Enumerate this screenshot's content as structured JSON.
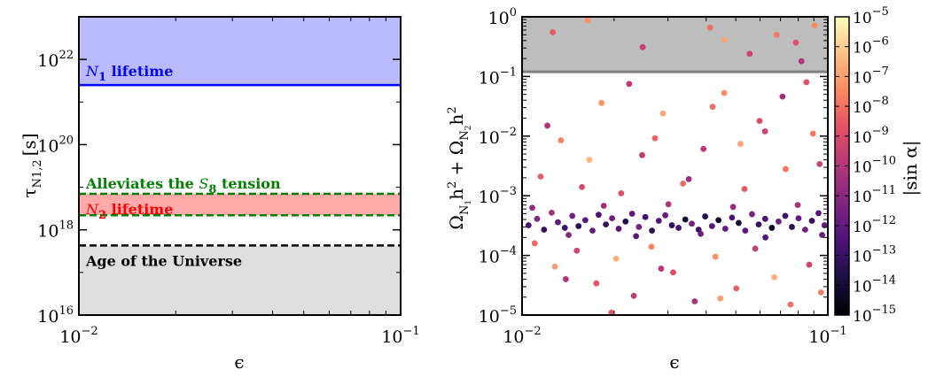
{
  "chart_data": [
    {
      "type": "area",
      "xlabel": "ϵ",
      "ylabel": "τN1,2 [s]",
      "ylabel_main": "τ",
      "ylabel_sub": "N1,2",
      "ylabel_unit": "[s]",
      "xscale": "log",
      "yscale": "log",
      "xlim": [
        0.01,
        0.1
      ],
      "ylim": [
        1e+16,
        1e+23
      ],
      "x_ticks": [
        {
          "base": "10",
          "exp": "−2"
        },
        {
          "base": "10",
          "exp": "−1"
        }
      ],
      "y_ticks": [
        {
          "value": 1e+16,
          "base": "10",
          "exp": "16"
        },
        {
          "value": 1e+18,
          "base": "10",
          "exp": "18"
        },
        {
          "value": 1e+20,
          "base": "10",
          "exp": "20"
        },
        {
          "value": 1e+22,
          "base": "10",
          "exp": "22"
        }
      ],
      "bands": [
        {
          "name": "N1 lifetime",
          "label_main": "N",
          "label_sub": "1",
          "label_rest": " lifetime",
          "y_low": 2.5e+21,
          "y_high": 1e+23,
          "fill": "#babaff",
          "edge": "#0000ff",
          "text_color": "#0000ff",
          "edge_style": "solid"
        },
        {
          "name": "N2 lifetime",
          "label_main": "N",
          "label_sub": "2",
          "label_rest": " lifetime",
          "y_low": 2.2e+18,
          "y_high": 7e+18,
          "fill": "#ffaaaa",
          "edge": "#ffaaaa",
          "text_color": "#ff0000",
          "edge_style": "none"
        },
        {
          "name": "Alleviates the S8 tension",
          "label_pre": "Alleviates the ",
          "label_main": "S",
          "label_sub": "8",
          "label_rest": " tension",
          "y_low": 2.2e+18,
          "y_high": 7e+18,
          "fill": "none",
          "edge": "#008000",
          "text_color": "#008000",
          "edge_style": "dashed"
        },
        {
          "name": "Age of the Universe",
          "label_text": "Age of the Universe",
          "y_low": 1e+16,
          "y_high": 4.3e+17,
          "fill": "#dfdfdf",
          "edge": "#000000",
          "text_color": "#000000",
          "edge_style": "dashed"
        }
      ]
    },
    {
      "type": "scatter",
      "xlabel": "ϵ",
      "ylabel": "ΩN1h2 + ΩN2h2",
      "xscale": "log",
      "yscale": "log",
      "xlim": [
        0.01,
        0.1
      ],
      "ylim": [
        1e-05,
        1
      ],
      "x_ticks": [
        {
          "base": "10",
          "exp": "−2"
        },
        {
          "base": "10",
          "exp": "−1"
        }
      ],
      "y_ticks": [
        {
          "value": 1e-05,
          "base": "10",
          "exp": "−5"
        },
        {
          "value": 0.0001,
          "base": "10",
          "exp": "−4"
        },
        {
          "value": 0.001,
          "base": "10",
          "exp": "−3"
        },
        {
          "value": 0.01,
          "base": "10",
          "exp": "−2"
        },
        {
          "value": 0.1,
          "base": "10",
          "exp": "−1"
        },
        {
          "value": 1,
          "base": "10",
          "exp": "0"
        }
      ],
      "excluded_region": {
        "y_low": 0.12,
        "y_high": 1,
        "fill": "#bdbdbd",
        "edge": "#808080"
      },
      "colorbar": {
        "label": "|sin α|",
        "scale": "log",
        "range": [
          1e-15,
          1e-05
        ],
        "colormap": "magma",
        "ticks": [
          {
            "value": 1e-05,
            "base": "10",
            "exp": "−5"
          },
          {
            "value": 1e-06,
            "base": "10",
            "exp": "−6"
          },
          {
            "value": 1e-07,
            "base": "10",
            "exp": "−7"
          },
          {
            "value": 1e-08,
            "base": "10",
            "exp": "−8"
          },
          {
            "value": 1e-09,
            "base": "10",
            "exp": "−9"
          },
          {
            "value": 1e-10,
            "base": "10",
            "exp": "−10"
          },
          {
            "value": 1e-11,
            "base": "10",
            "exp": "−11"
          },
          {
            "value": 1e-12,
            "base": "10",
            "exp": "−12"
          },
          {
            "value": 1e-13,
            "base": "10",
            "exp": "−13"
          },
          {
            "value": 1e-14,
            "base": "10",
            "exp": "−14"
          },
          {
            "value": 1e-15,
            "base": "10",
            "exp": "−15"
          }
        ]
      },
      "points": [
        [
          0.0105,
          0.00032,
          -12.5
        ],
        [
          0.0112,
          0.00041,
          -11.2
        ],
        [
          0.0118,
          0.00027,
          -13.1
        ],
        [
          0.0125,
          0.00052,
          -10.4
        ],
        [
          0.0131,
          0.00036,
          -12.0
        ],
        [
          0.0138,
          0.00029,
          -12.8
        ],
        [
          0.0146,
          0.00046,
          -11.5
        ],
        [
          0.0153,
          0.00031,
          -13.4
        ],
        [
          0.0161,
          0.00039,
          -12.2
        ],
        [
          0.017,
          0.00026,
          -11.9
        ],
        [
          0.0178,
          0.00048,
          -12.6
        ],
        [
          0.0188,
          0.00033,
          -13.0
        ],
        [
          0.0197,
          0.00042,
          -11.7
        ],
        [
          0.0207,
          0.00028,
          -12.3
        ],
        [
          0.0218,
          0.00037,
          -13.6
        ],
        [
          0.0229,
          0.0005,
          -12.1
        ],
        [
          0.0241,
          0.0003,
          -11.4
        ],
        [
          0.0253,
          0.00044,
          -12.9
        ],
        [
          0.0266,
          0.00026,
          -13.3
        ],
        [
          0.028,
          0.00038,
          -12.4
        ],
        [
          0.0294,
          0.00047,
          -11.8
        ],
        [
          0.0309,
          0.00032,
          -13.2
        ],
        [
          0.0325,
          0.00029,
          -12.7
        ],
        [
          0.0342,
          0.0004,
          -14.1
        ],
        [
          0.0359,
          0.00034,
          -11.6
        ],
        [
          0.0378,
          0.00027,
          -12.9
        ],
        [
          0.0397,
          0.00045,
          -13.5
        ],
        [
          0.0418,
          0.00031,
          -12.2
        ],
        [
          0.0439,
          0.00039,
          -14.3
        ],
        [
          0.0462,
          0.00028,
          -11.9
        ],
        [
          0.0486,
          0.00043,
          -12.6
        ],
        [
          0.0511,
          0.00035,
          -13.8
        ],
        [
          0.0537,
          0.00026,
          -12.1
        ],
        [
          0.0565,
          0.00049,
          -11.3
        ],
        [
          0.0594,
          0.00033,
          -13.0
        ],
        [
          0.0624,
          0.00041,
          -12.5
        ],
        [
          0.0656,
          0.00029,
          -14.6
        ],
        [
          0.069,
          0.00037,
          -11.7
        ],
        [
          0.0726,
          0.00046,
          -12.8
        ],
        [
          0.0763,
          0.0003,
          -13.4
        ],
        [
          0.0802,
          0.00042,
          -12.0
        ],
        [
          0.0843,
          0.00027,
          -11.5
        ],
        [
          0.0887,
          0.00038,
          -13.1
        ],
        [
          0.0932,
          0.00051,
          -12.3
        ],
        [
          0.0975,
          0.00032,
          -11.9
        ],
        [
          0.0108,
          0.00063,
          -10.8
        ],
        [
          0.0142,
          0.00022,
          -11.0
        ],
        [
          0.0185,
          0.00068,
          -10.5
        ],
        [
          0.0236,
          0.00021,
          -12.2
        ],
        [
          0.0301,
          0.00072,
          -10.1
        ],
        [
          0.0384,
          0.00023,
          -11.6
        ],
        [
          0.049,
          0.00065,
          -10.7
        ],
        [
          0.0625,
          0.0002,
          -12.4
        ],
        [
          0.0797,
          0.0007,
          -10.3
        ],
        [
          0.0958,
          0.00022,
          -11.8
        ],
        [
          0.0115,
          0.0021,
          -8.4
        ],
        [
          0.0134,
          0.0085,
          -7.6
        ],
        [
          0.0157,
          0.0014,
          -9.1
        ],
        [
          0.0182,
          0.036,
          -7.2
        ],
        [
          0.0211,
          0.0011,
          -8.8
        ],
        [
          0.0247,
          0.0048,
          -9.6
        ],
        [
          0.0289,
          0.024,
          -6.8
        ],
        [
          0.0336,
          0.0016,
          -8.1
        ],
        [
          0.0392,
          0.0061,
          -9.9
        ],
        [
          0.0458,
          0.053,
          -7.4
        ],
        [
          0.0534,
          0.0013,
          -8.6
        ],
        [
          0.0623,
          0.012,
          -9.3
        ],
        [
          0.0728,
          0.0028,
          -7.9
        ],
        [
          0.0851,
          0.08,
          -8.7
        ],
        [
          0.094,
          0.0034,
          -9.4
        ],
        [
          0.0121,
          0.015,
          -10.2
        ],
        [
          0.0166,
          0.004,
          -6.5
        ],
        [
          0.0224,
          0.075,
          -9.8
        ],
        [
          0.0272,
          0.0092,
          -8.3
        ],
        [
          0.0351,
          0.0019,
          -10.6
        ],
        [
          0.042,
          0.031,
          -8.0
        ],
        [
          0.0518,
          0.0074,
          -6.9
        ],
        [
          0.0598,
          0.018,
          -9.0
        ],
        [
          0.0711,
          0.046,
          -10.4
        ],
        [
          0.0894,
          0.011,
          -7.8
        ],
        [
          0.011,
          0.00016,
          -8.2
        ],
        [
          0.0128,
          6.5e-05,
          -7.1
        ],
        [
          0.0151,
          0.00012,
          -9.3
        ],
        [
          0.0175,
          3.4e-05,
          -8.6
        ],
        [
          0.0203,
          8.8e-05,
          -6.7
        ],
        [
          0.0232,
          2.1e-05,
          -9.7
        ],
        [
          0.0265,
          0.00014,
          -7.5
        ],
        [
          0.0312,
          5.2e-05,
          -8.9
        ],
        [
          0.0367,
          1.7e-05,
          -10.3
        ],
        [
          0.0429,
          9.5e-05,
          -7.3
        ],
        [
          0.0502,
          2.8e-05,
          -8.4
        ],
        [
          0.0579,
          0.00013,
          -9.6
        ],
        [
          0.0668,
          4.3e-05,
          -6.6
        ],
        [
          0.0755,
          1.5e-05,
          -8.0
        ],
        [
          0.0869,
          7e-05,
          -9.2
        ],
        [
          0.095,
          2.4e-05,
          -7.7
        ],
        [
          0.0139,
          4e-05,
          -10.1
        ],
        [
          0.0196,
          1.1e-05,
          -8.5
        ],
        [
          0.0285,
          6e-05,
          -9.9
        ],
        [
          0.0445,
          1.9e-05,
          -7.0
        ],
        [
          0.0126,
          0.55,
          -8.5
        ],
        [
          0.0164,
          0.87,
          -7.3
        ],
        [
          0.0248,
          0.31,
          -9.6
        ],
        [
          0.0412,
          0.66,
          -8.0
        ],
        [
          0.0459,
          0.41,
          -6.9
        ],
        [
          0.0555,
          0.24,
          -9.3
        ],
        [
          0.068,
          0.5,
          -7.8
        ],
        [
          0.0786,
          0.37,
          -8.8
        ],
        [
          0.082,
          0.18,
          -10.1
        ],
        [
          0.0905,
          0.72,
          -7.5
        ]
      ]
    }
  ]
}
